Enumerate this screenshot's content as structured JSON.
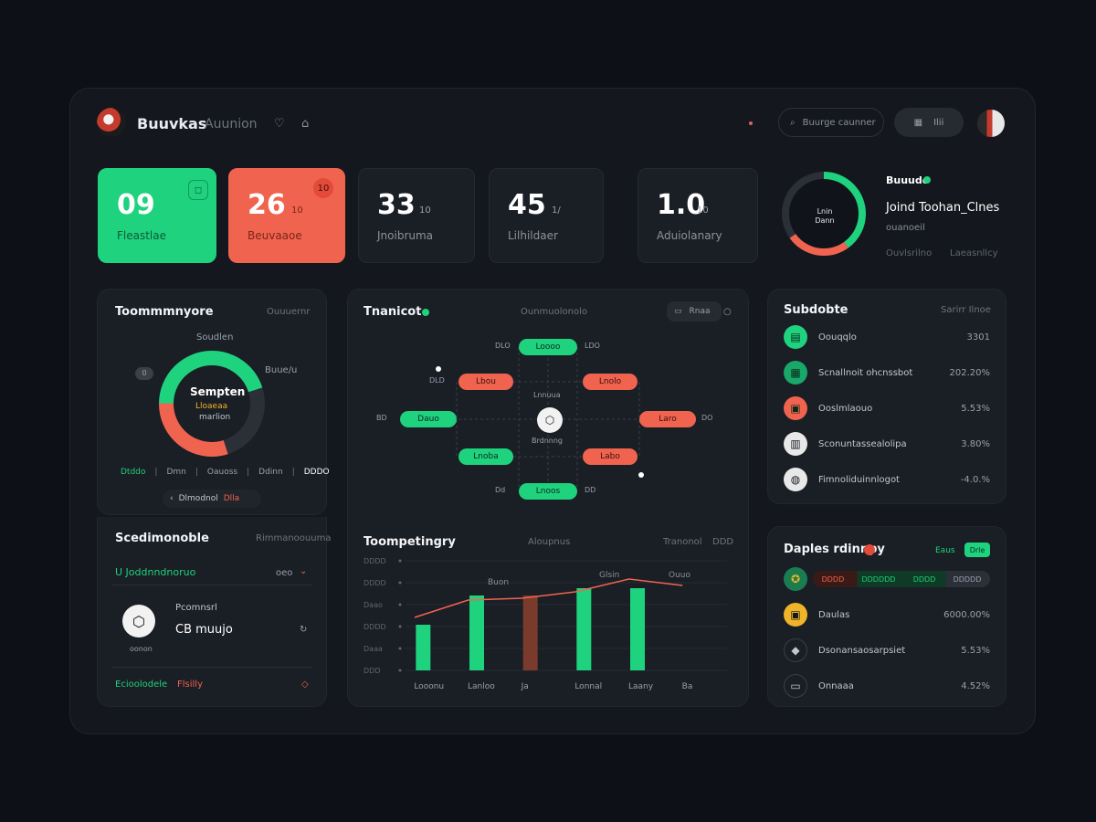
{
  "header": {
    "title": "Buuvkas",
    "subtitle": "Auunion",
    "search_label": "Buurge caunner",
    "pill2_label": "Ilii",
    "colors": {
      "accent_green": "#1fd27e",
      "accent_red": "#f0644f"
    }
  },
  "stats": [
    {
      "value": "09",
      "unit": "",
      "label": "Fleastlae"
    },
    {
      "value": "26",
      "unit": "10",
      "label": "Beuvaaoe",
      "badge": "10"
    },
    {
      "value": "33",
      "unit": "10",
      "label": "Jnoibruma"
    },
    {
      "value": "45",
      "unit": "1/",
      "label": "Lilhildaer"
    },
    {
      "value": "1.0",
      "unit": "10",
      "label": "Aduiolanary"
    }
  ],
  "ring": {
    "center": "Lnin Dann",
    "tag": "Buuudo",
    "title": "Joind Toohan_Clnes",
    "sub": "ouanoeil",
    "foot_left": "Ouvlsrilno",
    "foot_right": "Laeasnllcy",
    "green_fraction": 0.4,
    "red_fraction": 0.25
  },
  "panel_a": {
    "title": "Toommmnyore",
    "meta": "Ouuuernr",
    "donut_top": "Soudlen",
    "donut_center": "Sempten",
    "donut_sub1": "Lloaeaa",
    "donut_sub2": "marlion",
    "left_tag": "0",
    "right_tag": "Buue/u",
    "legend": [
      "Dtddo",
      "Dmn",
      "Oauoss",
      "Ddinn",
      "DDDO"
    ],
    "pill": "Dlmodnol",
    "pill_red": "Dlla",
    "green_fraction": 0.45,
    "red_fraction": 0.3
  },
  "panel_b": {
    "title": "Scedimonoble",
    "meta": "Rimmanoouuma",
    "row1": "U Joddnndnoruo",
    "row1_meta": "oeo",
    "card_label": "Pcomnsrl",
    "card_value": "CB muujo",
    "card_sub": "oonon",
    "foot_green": "Ecioolodele",
    "foot_red": "Flsilly"
  },
  "network": {
    "title": "Tnanicot",
    "meta": "Ounmuolonolo",
    "button": "Rnaa",
    "center": "Lnnuua",
    "center_sub": "Brdnnng",
    "nodes": [
      {
        "label": "Loooo",
        "color": "g",
        "left": "DLO",
        "right": "LDO"
      },
      {
        "label": "Lbou",
        "color": "r",
        "left": "DLD"
      },
      {
        "label": "Lnolo",
        "color": "r"
      },
      {
        "label": "Dauo",
        "color": "g",
        "left": "BD"
      },
      {
        "label": "Laro",
        "color": "r",
        "right": "DO"
      },
      {
        "label": "Lnoba",
        "color": "g"
      },
      {
        "label": "Labo",
        "color": "r"
      },
      {
        "label": "Lnoos",
        "color": "g",
        "left": "Dd",
        "right": "DD"
      }
    ]
  },
  "trend": {
    "title": "Toompetingry",
    "meta": "Aloupnus",
    "meta2": "Tranonol",
    "meta3": "DDD",
    "top_labels": [
      "Buon",
      "Glsin",
      "Ouuo"
    ]
  },
  "chart_data": {
    "type": "bar",
    "categories": [
      "Looonu",
      "Lanloo",
      "Ja",
      "Lonnal",
      "Laany",
      "Ba"
    ],
    "series": [
      {
        "values": [
          50,
          82,
          82,
          90,
          90,
          0
        ]
      }
    ],
    "line": [
      58,
      77,
      79,
      86,
      100,
      93
    ],
    "y_ticks": [
      "DDD",
      "Daaa",
      "DDDD",
      "Daao",
      "DDDD",
      "DDDD"
    ],
    "ylim": [
      0,
      120
    ]
  },
  "list": {
    "title": "Subdobte",
    "meta": "Sarirr Ilnoe",
    "items": [
      {
        "label": "Oouqqlo",
        "value": "3301",
        "icon": "chart-icon",
        "bg": "#1fd27e"
      },
      {
        "label": "Scnallnoit ohcnssbot",
        "value": "202.20%",
        "icon": "grid-icon",
        "bg": "#18a86a"
      },
      {
        "label": "Ooslmlaouo",
        "value": "5.53%",
        "icon": "calendar-icon",
        "bg": "#f0644f"
      },
      {
        "label": "Sconuntassealolipa",
        "value": "3.80%",
        "icon": "doc-icon",
        "bg": "#e8e8e8"
      },
      {
        "label": "Fimnoliduinnlogot",
        "value": "-4.0.%",
        "icon": "tag-icon",
        "bg": "#e8e8e8"
      }
    ]
  },
  "dep": {
    "title": "Daples rdinnpy",
    "tag": "Eaus",
    "btn": "Drle",
    "tabs": [
      "DDDD",
      "DDDDDD",
      "DDDD",
      "DDDDD"
    ],
    "items": [
      {
        "label": "Daulas",
        "value": "6000.00%",
        "icon": "gear-icon",
        "bg": "#f0b429"
      },
      {
        "label": "Dsonansaosarpsiet",
        "value": "5.53%",
        "icon": "shield-icon",
        "bg": "#1a1e25"
      },
      {
        "label": "Onnaaa",
        "value": "4.52%",
        "icon": "box-icon",
        "bg": "#1a1e25"
      }
    ]
  }
}
